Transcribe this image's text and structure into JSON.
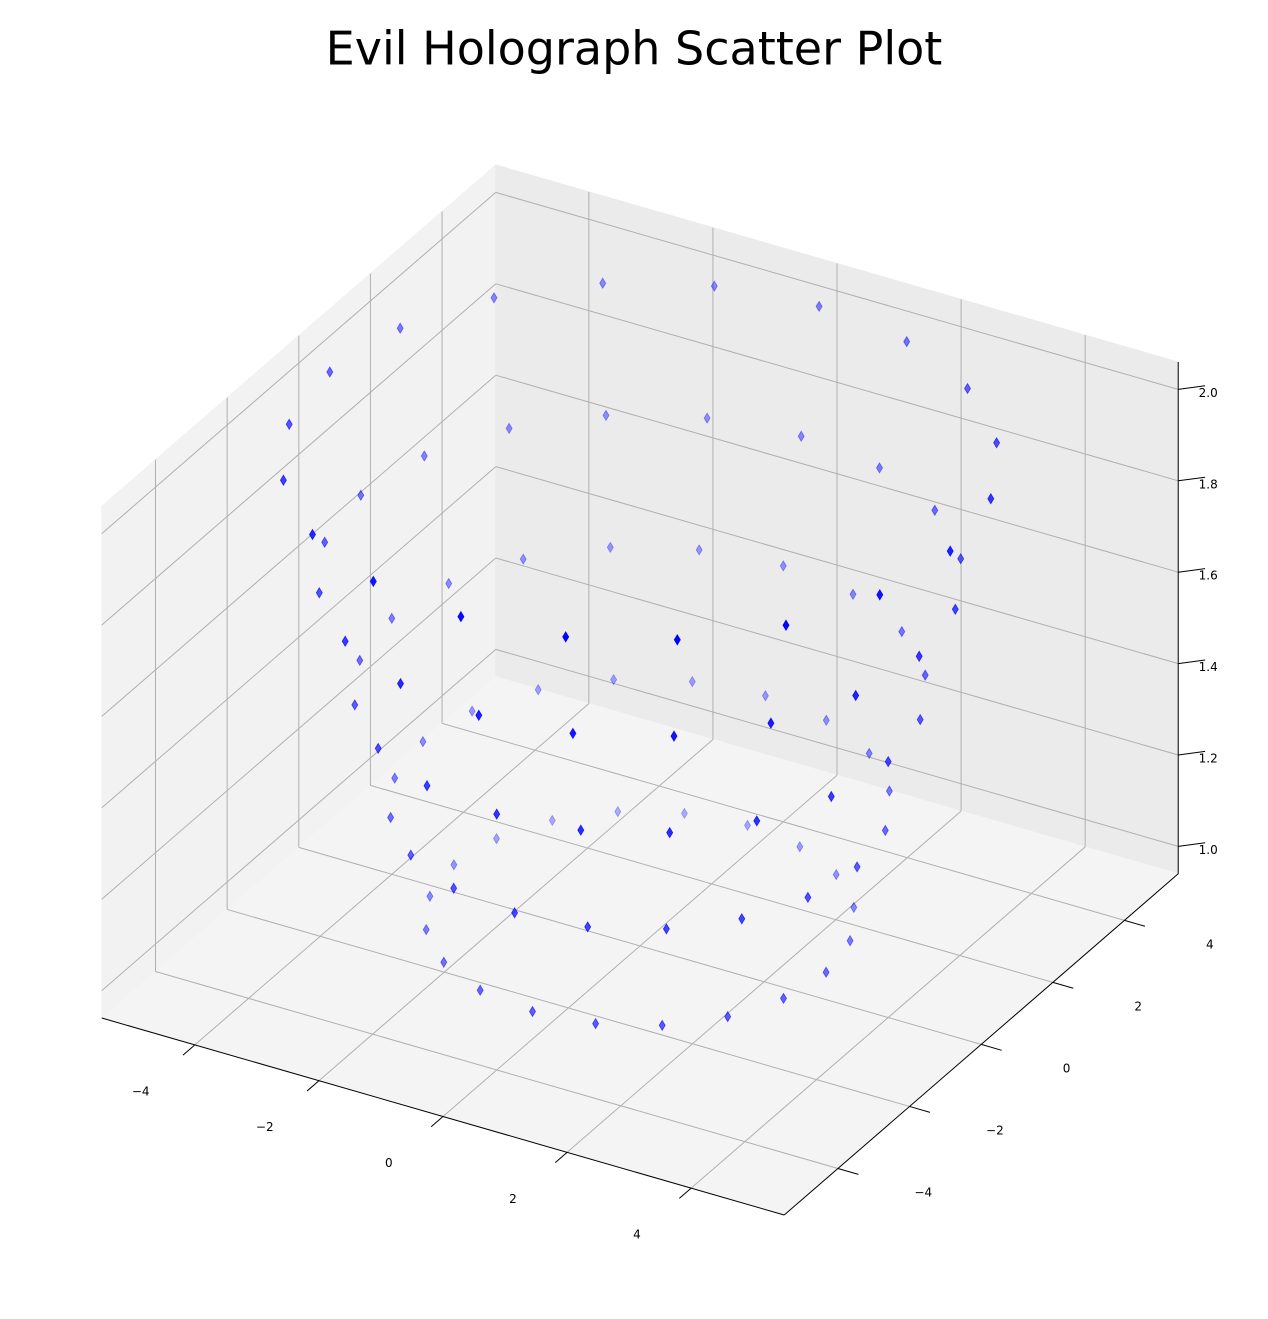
{
  "chart_data": {
    "type": "scatter3d",
    "title": "Evil Holograph Scatter Plot",
    "marker": "thin-diamond",
    "color": "#0000ff",
    "grid": true,
    "x": [
      3,
      2.85,
      2.43,
      1.76,
      0.93,
      0,
      -0.93,
      -1.76,
      -2.43,
      -2.85,
      -3,
      -2.85,
      -2.43,
      -1.76,
      -0.93,
      0,
      0.93,
      1.76,
      2.43,
      2.85,
      3.5,
      3.33,
      2.83,
      2.06,
      1.08,
      0,
      -1.08,
      -2.06,
      -2.83,
      -3.33,
      -3.5,
      -3.33,
      -2.83,
      -2.06,
      -1.08,
      0,
      1.08,
      2.06,
      2.83,
      3.33,
      4,
      3.8,
      3.24,
      2.35,
      1.24,
      0,
      -1.24,
      -2.35,
      -3.24,
      -3.8,
      -4,
      -3.8,
      -3.24,
      -2.35,
      -1.24,
      0,
      1.24,
      2.35,
      3.24,
      3.8,
      4.5,
      4.28,
      3.64,
      2.65,
      1.39,
      0,
      -1.39,
      -2.65,
      -3.64,
      -4.28,
      -4.5,
      -4.28,
      -3.64,
      -2.65,
      -1.39,
      0,
      1.39,
      2.65,
      3.64,
      4.28,
      5,
      4.76,
      4.05,
      2.94,
      1.55,
      0,
      -1.55,
      -2.94,
      -4.05,
      -4.76,
      -5,
      -4.76,
      -4.05,
      -2.94,
      -1.55,
      0,
      1.55,
      2.94,
      4.05,
      4.76
    ],
    "y": [
      0,
      0.93,
      1.76,
      2.43,
      2.85,
      3,
      2.85,
      2.43,
      1.76,
      0.93,
      0,
      -0.93,
      -1.76,
      -2.43,
      -2.85,
      -3,
      -2.85,
      -2.43,
      -1.76,
      -0.93,
      0,
      1.08,
      2.06,
      2.83,
      3.33,
      3.5,
      3.33,
      2.83,
      2.06,
      1.08,
      0,
      -1.08,
      -2.06,
      -2.83,
      -3.33,
      -3.5,
      -3.33,
      -2.83,
      -2.06,
      -1.08,
      0,
      1.24,
      2.35,
      3.24,
      3.8,
      4,
      3.8,
      3.24,
      2.35,
      1.24,
      0,
      -1.24,
      -2.35,
      -3.24,
      -3.8,
      -4,
      -3.8,
      -3.24,
      -2.35,
      -1.24,
      0,
      1.39,
      2.65,
      3.64,
      4.28,
      4.5,
      4.28,
      3.64,
      2.65,
      1.39,
      0,
      -1.39,
      -2.65,
      -3.64,
      -4.28,
      -4.5,
      -4.28,
      -3.64,
      -2.65,
      -1.39,
      0,
      1.55,
      2.94,
      4.05,
      4.76,
      5,
      4.76,
      4.05,
      2.94,
      1.55,
      0,
      -1.55,
      -2.94,
      -4.05,
      -4.76,
      -5,
      -4.76,
      -4.05,
      -2.94,
      -1.55
    ],
    "z": [
      1,
      1,
      1,
      1,
      1,
      1,
      1,
      1,
      1,
      1,
      1,
      1,
      1,
      1,
      1,
      1,
      1,
      1,
      1,
      1,
      1.25,
      1.25,
      1.25,
      1.25,
      1.25,
      1.25,
      1.25,
      1.25,
      1.25,
      1.25,
      1.25,
      1.25,
      1.25,
      1.25,
      1.25,
      1.25,
      1.25,
      1.25,
      1.25,
      1.25,
      1.5,
      1.5,
      1.5,
      1.5,
      1.5,
      1.5,
      1.5,
      1.5,
      1.5,
      1.5,
      1.5,
      1.5,
      1.5,
      1.5,
      1.5,
      1.5,
      1.5,
      1.5,
      1.5,
      1.5,
      1.75,
      1.75,
      1.75,
      1.75,
      1.75,
      1.75,
      1.75,
      1.75,
      1.75,
      1.75,
      1.75,
      1.75,
      1.75,
      1.75,
      1.75,
      1.75,
      1.75,
      1.75,
      1.75,
      1.75,
      2,
      2,
      2,
      2,
      2,
      2,
      2,
      2,
      2,
      2,
      2,
      2,
      2,
      2,
      2,
      2,
      2,
      2,
      2,
      2
    ],
    "xlim": [
      -5.5,
      5.5
    ],
    "ylim": [
      -5.5,
      5.5
    ],
    "zlim": [
      0.94,
      2.06
    ],
    "xticks": [
      {
        "value": -4,
        "label": "−4"
      },
      {
        "value": -2,
        "label": "−2"
      },
      0,
      2,
      4
    ],
    "yticks": [
      {
        "value": -4,
        "label": "−4"
      },
      {
        "value": -2,
        "label": "−2"
      },
      0,
      2,
      4
    ],
    "zticks": [
      {
        "value": 1,
        "label": "1.0"
      },
      1.2,
      1.4,
      1.6,
      1.8,
      {
        "value": 2,
        "label": "2.0"
      }
    ]
  }
}
